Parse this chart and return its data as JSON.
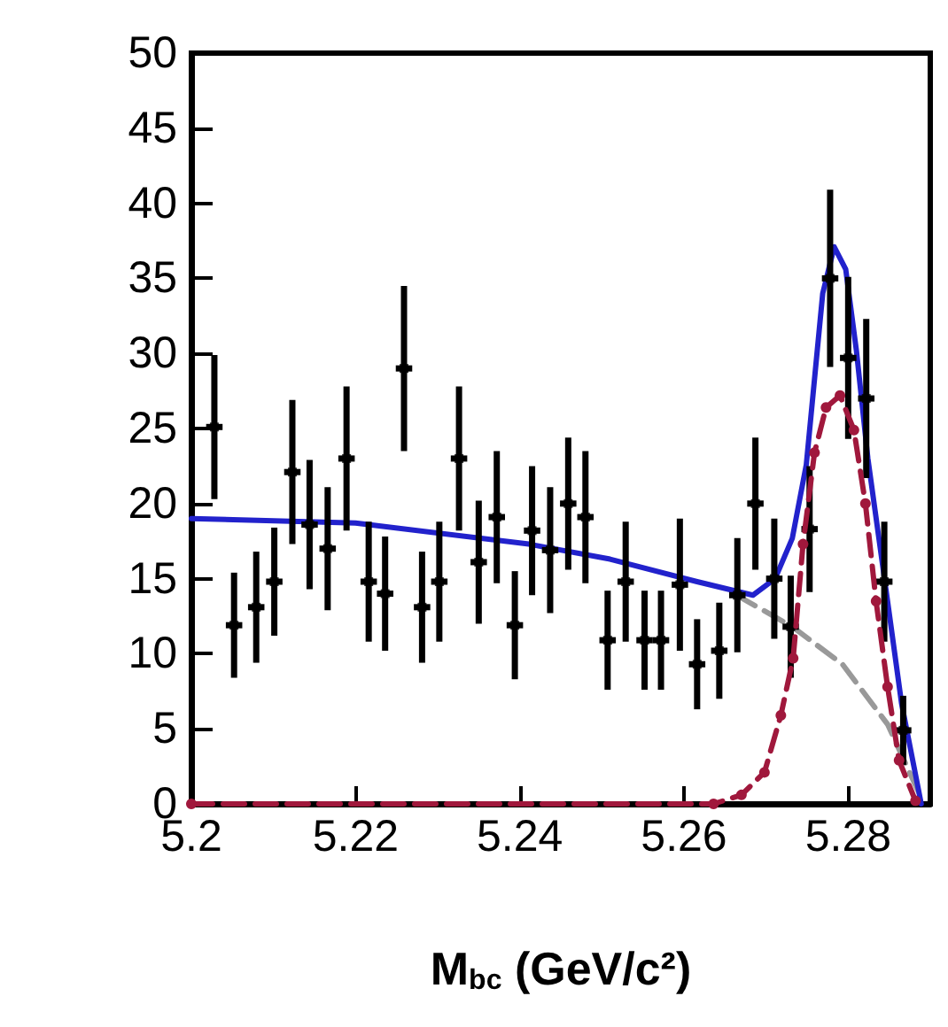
{
  "chart_data": {
    "type": "scatter",
    "xlabel": "M$_{bc}$ (GeV/c²)",
    "xlim": [
      5.2,
      5.29
    ],
    "xticks": [
      5.2,
      5.22,
      5.24,
      5.26,
      5.28
    ],
    "ylim": [
      0,
      50
    ],
    "yticks": [
      0,
      5,
      10,
      15,
      20,
      25,
      30,
      35,
      40,
      45,
      50
    ],
    "grid": false,
    "series": [
      {
        "color": "#000000",
        "marker": "square",
        "x": [
          5.2028,
          5.2052,
          5.2079,
          5.2101,
          5.2123,
          5.2144,
          5.2166,
          5.2189,
          5.2216,
          5.2236,
          5.2259,
          5.2281,
          5.2302,
          5.2326,
          5.235,
          5.2372,
          5.2394,
          5.2415,
          5.2437,
          5.2459,
          5.248,
          5.2507,
          5.2529,
          5.2552,
          5.2572,
          5.2595,
          5.2616,
          5.2643,
          5.2665,
          5.2687,
          5.271,
          5.273,
          5.2753,
          5.2778,
          5.28,
          5.2822,
          5.2844,
          5.2867
        ],
        "values": [
          25.1,
          11.9,
          13.1,
          14.8,
          22.1,
          18.6,
          17,
          23,
          14.8,
          14,
          29,
          13.1,
          14.8,
          23,
          16.1,
          19.1,
          11.9,
          18.2,
          16.9,
          20,
          19.1,
          10.9,
          14.8,
          10.9,
          10.9,
          14.6,
          9.3,
          10.2,
          13.9,
          20,
          15,
          11.8,
          18.3,
          35,
          29.7,
          27,
          14.8,
          4.9
        ],
        "errors": [
          4.8,
          3.5,
          3.7,
          3.6,
          4.8,
          4.3,
          4.1,
          4.8,
          4,
          3.8,
          5.5,
          3.7,
          4,
          4.8,
          4.1,
          4.4,
          3.6,
          4.3,
          4.2,
          4.4,
          4.4,
          3.3,
          4,
          3.3,
          3.3,
          4.4,
          3,
          3.2,
          3.8,
          4.4,
          4,
          3.4,
          4.2,
          5.9,
          5.4,
          5.3,
          4,
          2.3
        ],
        "xerrors": [
          0.001,
          0.001,
          0.001,
          0.001,
          0.001,
          0.001,
          0.001,
          0.001,
          0.001,
          0.001,
          0.001,
          0.001,
          0.001,
          0.001,
          0.001,
          0.001,
          0.001,
          0.001,
          0.001,
          0.001,
          0.001,
          0.001,
          0.001,
          0.001,
          0.001,
          0.001,
          0.001,
          0.001,
          0.001,
          0.001,
          0.001,
          0.001,
          0.001,
          0.001,
          0.001,
          0.001,
          0.001,
          0.001
        ]
      },
      {
        "type": "line",
        "color": "#a0183c",
        "marker": "circle",
        "line_style": "dashed",
        "x": [
          5.2,
          5.2636,
          5.267,
          5.2698,
          5.2718,
          5.2733,
          5.2745,
          5.2759,
          5.2773,
          5.279,
          5.2807,
          5.2821,
          5.2834,
          5.2848,
          5.2862,
          5.2882
        ],
        "values": [
          0,
          0,
          0.6,
          2.1,
          5.9,
          9.7,
          17.3,
          23.4,
          26.4,
          27.2,
          24.9,
          20,
          13.5,
          7.8,
          2.9,
          0.2
        ]
      },
      {
        "type": "line",
        "color": "#999999",
        "marker": "none",
        "line_style": "dashed",
        "x": [
          5.2664,
          5.2732,
          5.2793,
          5.2848,
          5.2889
        ],
        "values": [
          13.9,
          11.8,
          9.3,
          5.3,
          0.4
        ]
      },
      {
        "type": "line",
        "color": "#2222cc",
        "marker": "none",
        "line_style": "solid",
        "x": [
          5.2,
          5.22,
          5.2411,
          5.251,
          5.2616,
          5.2684,
          5.2711,
          5.2732,
          5.2749,
          5.2769,
          5.2783,
          5.2797,
          5.281,
          5.2824,
          5.2848,
          5.2865,
          5.2889
        ],
        "values": [
          19,
          18.7,
          17.3,
          16.3,
          14.8,
          13.9,
          15,
          17.7,
          22.6,
          34,
          37.1,
          35.6,
          30.2,
          23,
          13.5,
          6.7,
          0
        ]
      }
    ]
  }
}
